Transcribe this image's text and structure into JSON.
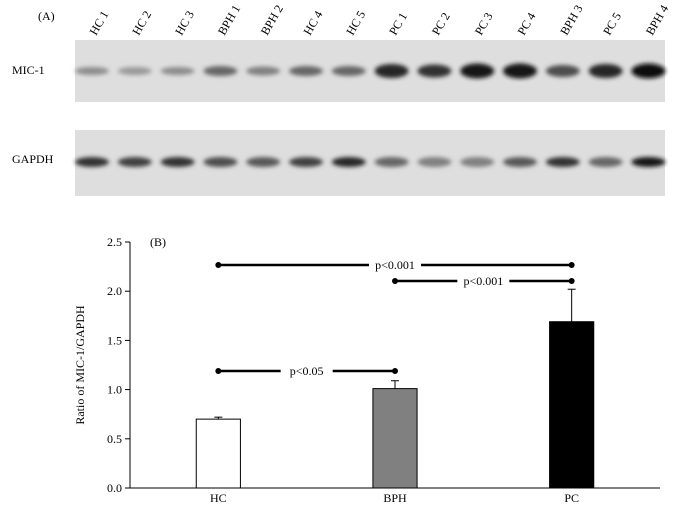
{
  "blot": {
    "panel_label": "(A)",
    "lanes": [
      "HC 1",
      "HC 2",
      "HC 3",
      "BPH 1",
      "BPH 2",
      "HC 4",
      "HC 5",
      "PC 1",
      "PC 2",
      "PC 3",
      "PC 4",
      "BPH 3",
      "PC 5",
      "BPH 4"
    ],
    "rows": [
      "MIC-1",
      "GAPDH"
    ]
  },
  "chart_data": {
    "type": "bar",
    "panel_label": "(B)",
    "y_label": "Ratio of MIC-1/GAPDH",
    "categories": [
      "HC",
      "BPH",
      "PC"
    ],
    "values": [
      0.7,
      1.01,
      1.69
    ],
    "errors": [
      0.02,
      0.08,
      0.33
    ],
    "colors": [
      "#ffffff",
      "#808080",
      "#000000"
    ],
    "ylim": [
      0,
      2.5
    ],
    "yticks": [
      {
        "value": 0,
        "label": "0.0"
      },
      0.5,
      {
        "value": 1,
        "label": "1.0"
      },
      1.5,
      {
        "value": 2,
        "label": "2.0"
      },
      2.5
    ],
    "annotations": [
      "p<0.001",
      "p<0.001",
      "p<0.05"
    ]
  }
}
